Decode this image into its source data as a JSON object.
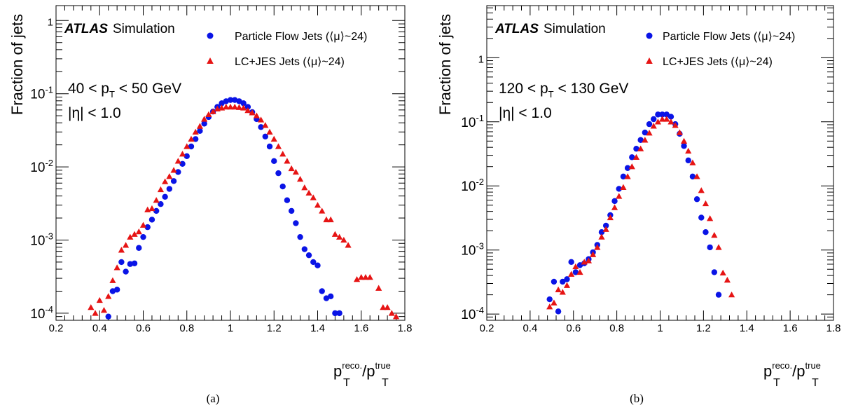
{
  "panels": [
    {
      "caption": "(a)",
      "experiment": "ATLAS",
      "experiment_suffix": "Simulation",
      "ylabel": "Fraction of jets",
      "xlabel_main": "p",
      "xlabel_num_sup": "reco.",
      "xlabel_sub": "T",
      "xlabel_slash": "/p",
      "xlabel_den_sup": "true",
      "cut_pt_left": "40 < p",
      "cut_pt_sub": "T",
      "cut_pt_right": " < 50 GeV",
      "cut_eta": "|η| < 1.0",
      "legend": [
        {
          "label": "Particle Flow Jets (⟨μ⟩~24)",
          "marker": "circle"
        },
        {
          "label": "LC+JES Jets (⟨μ⟩~24)",
          "marker": "triangle"
        }
      ]
    },
    {
      "caption": "(b)",
      "experiment": "ATLAS",
      "experiment_suffix": "Simulation",
      "ylabel": "Fraction of jets",
      "xlabel_main": "p",
      "xlabel_num_sup": "reco.",
      "xlabel_sub": "T",
      "xlabel_slash": "/p",
      "xlabel_den_sup": "true",
      "cut_pt_left": "120 < p",
      "cut_pt_sub": "T",
      "cut_pt_right": " < 130 GeV",
      "cut_eta": "|η| < 1.0",
      "legend": [
        {
          "label": "Particle Flow Jets (⟨μ⟩~24)",
          "marker": "circle"
        },
        {
          "label": "LC+JES Jets (⟨μ⟩~24)",
          "marker": "triangle"
        }
      ]
    }
  ],
  "colors": {
    "pflow": "#0a14e6",
    "lcjes": "#e61414",
    "axis": "#000000"
  },
  "chart_data": [
    {
      "type": "scatter",
      "yscale": "log",
      "xlim": [
        0.2,
        1.8
      ],
      "ylim": [
        8e-05,
        1.6
      ],
      "x_ticks": [
        "0.2",
        "0.4",
        "0.6",
        "0.8",
        "1",
        "1.2",
        "1.4",
        "1.6",
        "1.8"
      ],
      "y_ticks": [
        "10^-4",
        "10^-3",
        "10^-2",
        "10^-1",
        "1"
      ],
      "series": [
        {
          "name": "Particle Flow Jets (⟨μ⟩~24)",
          "x": [
            0.44,
            0.46,
            0.48,
            0.5,
            0.52,
            0.54,
            0.56,
            0.58,
            0.6,
            0.62,
            0.64,
            0.66,
            0.68,
            0.7,
            0.72,
            0.74,
            0.76,
            0.78,
            0.8,
            0.82,
            0.84,
            0.86,
            0.88,
            0.9,
            0.92,
            0.94,
            0.96,
            0.98,
            1.0,
            1.02,
            1.04,
            1.06,
            1.08,
            1.1,
            1.12,
            1.14,
            1.16,
            1.18,
            1.2,
            1.22,
            1.24,
            1.26,
            1.28,
            1.3,
            1.32,
            1.34,
            1.36,
            1.38,
            1.4,
            1.42,
            1.44,
            1.46,
            1.48,
            1.5
          ],
          "y": [
            9e-05,
            0.0002,
            0.00021,
            0.0005,
            0.00037,
            0.00047,
            0.00048,
            0.00078,
            0.0011,
            0.0015,
            0.0019,
            0.0025,
            0.0031,
            0.0039,
            0.005,
            0.0064,
            0.0085,
            0.011,
            0.014,
            0.019,
            0.024,
            0.031,
            0.039,
            0.048,
            0.057,
            0.066,
            0.074,
            0.079,
            0.082,
            0.082,
            0.079,
            0.074,
            0.066,
            0.056,
            0.045,
            0.035,
            0.026,
            0.019,
            0.012,
            0.0082,
            0.0054,
            0.0035,
            0.0025,
            0.0017,
            0.0011,
            0.00075,
            0.00062,
            0.0005,
            0.00045,
            0.0002,
            0.00016,
            0.00017,
            0.0001,
            0.0001
          ]
        },
        {
          "name": "LC+JES Jets (⟨μ⟩~24)",
          "x": [
            0.36,
            0.38,
            0.4,
            0.42,
            0.44,
            0.46,
            0.48,
            0.5,
            0.52,
            0.54,
            0.56,
            0.58,
            0.6,
            0.62,
            0.64,
            0.66,
            0.68,
            0.7,
            0.72,
            0.74,
            0.76,
            0.78,
            0.8,
            0.82,
            0.84,
            0.86,
            0.88,
            0.9,
            0.92,
            0.94,
            0.96,
            0.98,
            1.0,
            1.02,
            1.04,
            1.06,
            1.08,
            1.1,
            1.12,
            1.14,
            1.16,
            1.18,
            1.2,
            1.22,
            1.24,
            1.26,
            1.28,
            1.3,
            1.32,
            1.34,
            1.36,
            1.38,
            1.4,
            1.42,
            1.44,
            1.46,
            1.48,
            1.5,
            1.52,
            1.54,
            1.58,
            1.6,
            1.62,
            1.64,
            1.68,
            1.7,
            1.72,
            1.74,
            1.76
          ],
          "y": [
            0.00012,
            0.0001,
            0.00015,
            0.00011,
            0.00017,
            0.00028,
            0.00042,
            0.00073,
            0.00085,
            0.0011,
            0.0012,
            0.0013,
            0.0016,
            0.0026,
            0.0027,
            0.0035,
            0.0049,
            0.0063,
            0.0074,
            0.009,
            0.012,
            0.015,
            0.019,
            0.024,
            0.03,
            0.036,
            0.045,
            0.052,
            0.057,
            0.062,
            0.064,
            0.066,
            0.066,
            0.066,
            0.065,
            0.064,
            0.059,
            0.055,
            0.05,
            0.044,
            0.037,
            0.03,
            0.024,
            0.019,
            0.015,
            0.012,
            0.0095,
            0.0085,
            0.0068,
            0.0052,
            0.0044,
            0.0038,
            0.003,
            0.0025,
            0.0019,
            0.0019,
            0.0012,
            0.0011,
            0.001,
            0.00085,
            0.00029,
            0.00031,
            0.00031,
            0.00031,
            0.00022,
            0.00012,
            0.00012,
            0.0001,
            9e-05
          ]
        }
      ]
    },
    {
      "type": "scatter",
      "yscale": "log",
      "xlim": [
        0.2,
        1.8
      ],
      "ylim": [
        8e-05,
        6.5
      ],
      "x_ticks": [
        "0.2",
        "0.4",
        "0.6",
        "0.8",
        "1",
        "1.2",
        "1.4",
        "1.6",
        "1.8"
      ],
      "y_ticks": [
        "10^-4",
        "10^-3",
        "10^-2",
        "10^-1",
        "1"
      ],
      "series": [
        {
          "name": "Particle Flow Jets (⟨μ⟩~24)",
          "x": [
            0.49,
            0.51,
            0.53,
            0.55,
            0.57,
            0.59,
            0.61,
            0.63,
            0.65,
            0.67,
            0.69,
            0.71,
            0.73,
            0.75,
            0.77,
            0.79,
            0.81,
            0.83,
            0.85,
            0.87,
            0.89,
            0.91,
            0.93,
            0.95,
            0.97,
            0.99,
            1.01,
            1.03,
            1.05,
            1.07,
            1.09,
            1.11,
            1.13,
            1.15,
            1.17,
            1.19,
            1.21,
            1.23,
            1.25,
            1.27
          ],
          "y": [
            0.00017,
            0.00032,
            0.00011,
            0.00032,
            0.00035,
            0.00065,
            0.00045,
            0.00058,
            0.00062,
            0.00072,
            0.00092,
            0.0012,
            0.0019,
            0.0024,
            0.0035,
            0.0058,
            0.009,
            0.014,
            0.019,
            0.028,
            0.038,
            0.052,
            0.068,
            0.092,
            0.11,
            0.13,
            0.13,
            0.13,
            0.12,
            0.092,
            0.065,
            0.042,
            0.025,
            0.014,
            0.0062,
            0.0032,
            0.0019,
            0.0011,
            0.00045,
            0.0002
          ]
        },
        {
          "name": "LC+JES Jets (⟨μ⟩~24)",
          "x": [
            0.49,
            0.51,
            0.53,
            0.55,
            0.57,
            0.59,
            0.61,
            0.63,
            0.65,
            0.67,
            0.69,
            0.71,
            0.73,
            0.75,
            0.77,
            0.79,
            0.81,
            0.83,
            0.85,
            0.87,
            0.89,
            0.91,
            0.93,
            0.95,
            0.97,
            0.99,
            1.01,
            1.03,
            1.05,
            1.07,
            1.09,
            1.11,
            1.13,
            1.15,
            1.17,
            1.19,
            1.21,
            1.23,
            1.25,
            1.27,
            1.29,
            1.31,
            1.33
          ],
          "y": [
            0.00013,
            0.00015,
            0.00024,
            0.00022,
            0.00028,
            0.00042,
            0.00055,
            0.00045,
            0.00065,
            0.00068,
            0.00085,
            0.0011,
            0.0016,
            0.0021,
            0.0032,
            0.0046,
            0.0069,
            0.0095,
            0.014,
            0.02,
            0.028,
            0.038,
            0.052,
            0.067,
            0.086,
            0.1,
            0.11,
            0.11,
            0.1,
            0.088,
            0.068,
            0.05,
            0.035,
            0.023,
            0.014,
            0.0085,
            0.0053,
            0.0031,
            0.0017,
            0.0011,
            0.00044,
            0.00034,
            0.0002
          ]
        }
      ]
    }
  ]
}
